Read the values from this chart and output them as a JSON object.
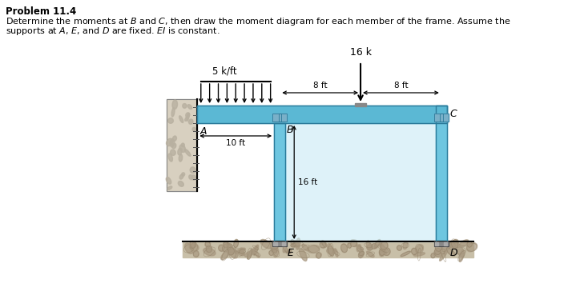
{
  "title": "Problem 11.4",
  "desc1": "Determine the moments at $B$ and $C$, then draw the moment diagram for each member of the frame. Assume the",
  "desc2": "supports at $A$, $E$, and $D$ are fixed. $EI$ is constant.",
  "bg_color": "#ffffff",
  "beam_color": "#5bb8d4",
  "beam_edge": "#2a7a9a",
  "col_color": "#6ec6e0",
  "col_edge": "#2a7a9a",
  "interior_color": "#c8eaf5",
  "load_dist": "5 k/ft",
  "load_point": "16 k",
  "dim_10ft": "10 ft",
  "dim_16ft": "16 ft",
  "dim_8ft_left": "8 ft",
  "dim_8ft_right": "8 ft",
  "ground_dark": "#7a6a50",
  "ground_light": "#b0a080",
  "wall_bg": "#c8c0b0",
  "rock_color": "#a0a0a0"
}
